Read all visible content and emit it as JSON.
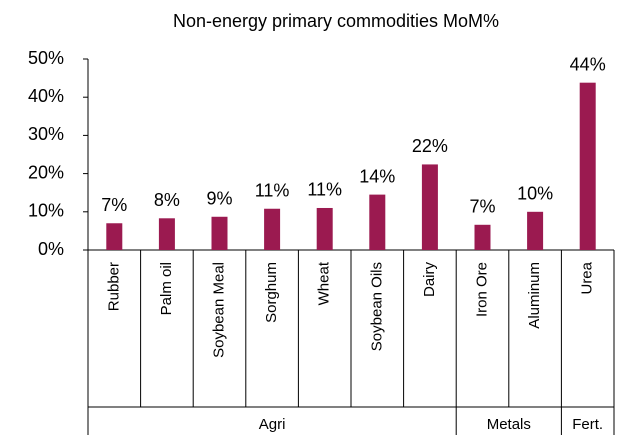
{
  "chart_data": {
    "type": "bar",
    "title": "Non-energy primary commodities MoM%",
    "categories": [
      "Rubber",
      "Palm oil",
      "Soybean Meal",
      "Sorghum",
      "Wheat",
      "Soybean Oils",
      "Dairy",
      "Iron Ore",
      "Aluminum",
      "Urea"
    ],
    "values": [
      7,
      8.3,
      8.7,
      10.8,
      11,
      14.5,
      22.4,
      6.6,
      10,
      43.8
    ],
    "value_labels": [
      "7%",
      "8%",
      "9%",
      "11%",
      "11%",
      "14%",
      "22%",
      "7%",
      "10%",
      "44%"
    ],
    "groups": [
      "Agri",
      "Metals",
      "Fert."
    ],
    "color": "#9b1a50",
    "ylim": [
      0,
      50
    ],
    "yticks": [
      {
        "value": 0,
        "label": "0%"
      },
      {
        "value": 10,
        "label": "10%"
      },
      {
        "value": 20,
        "label": "20%"
      },
      {
        "value": 30,
        "label": "30%"
      },
      {
        "value": 40,
        "label": "40%"
      },
      {
        "value": 50,
        "label": "50%"
      }
    ]
  }
}
